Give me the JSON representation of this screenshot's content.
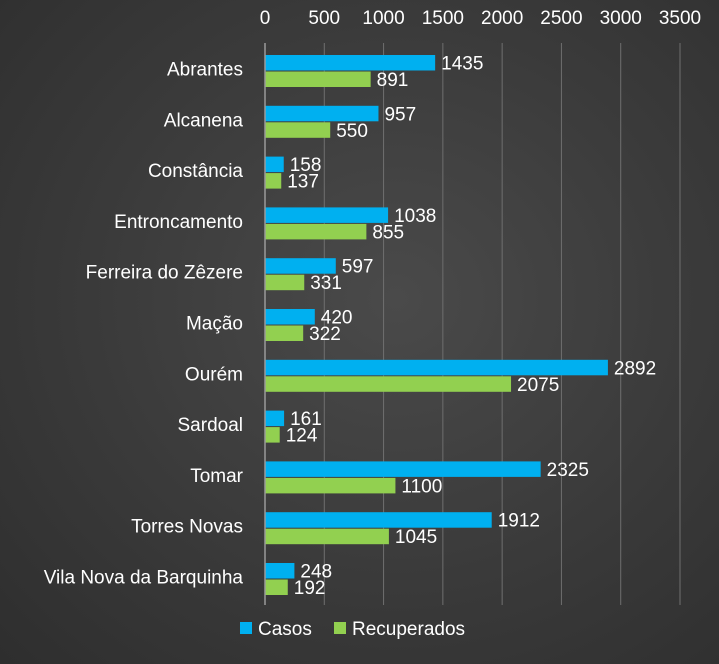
{
  "chart_data": {
    "type": "bar",
    "orientation": "horizontal",
    "categories": [
      "Abrantes",
      "Alcanena",
      "Constância",
      "Entroncamento",
      "Ferreira do Zêzere",
      "Mação",
      "Ourém",
      "Sardoal",
      "Tomar",
      "Torres Novas",
      "Vila Nova da Barquinha"
    ],
    "series": [
      {
        "name": "Casos",
        "color": "#00b0f0",
        "values": [
          1435,
          957,
          158,
          1038,
          597,
          420,
          2892,
          161,
          2325,
          1912,
          248
        ]
      },
      {
        "name": "Recuperados",
        "color": "#92d050",
        "values": [
          891,
          550,
          137,
          855,
          331,
          322,
          2075,
          124,
          1100,
          1045,
          192
        ]
      }
    ],
    "xlim": [
      0,
      3500
    ],
    "xticks": [
      "0",
      "500",
      "1000",
      "1500",
      "2000",
      "2500",
      "3000",
      "3500"
    ],
    "axis_position": "top",
    "grid": true,
    "legend_position": "bottom",
    "data_labels": true
  }
}
